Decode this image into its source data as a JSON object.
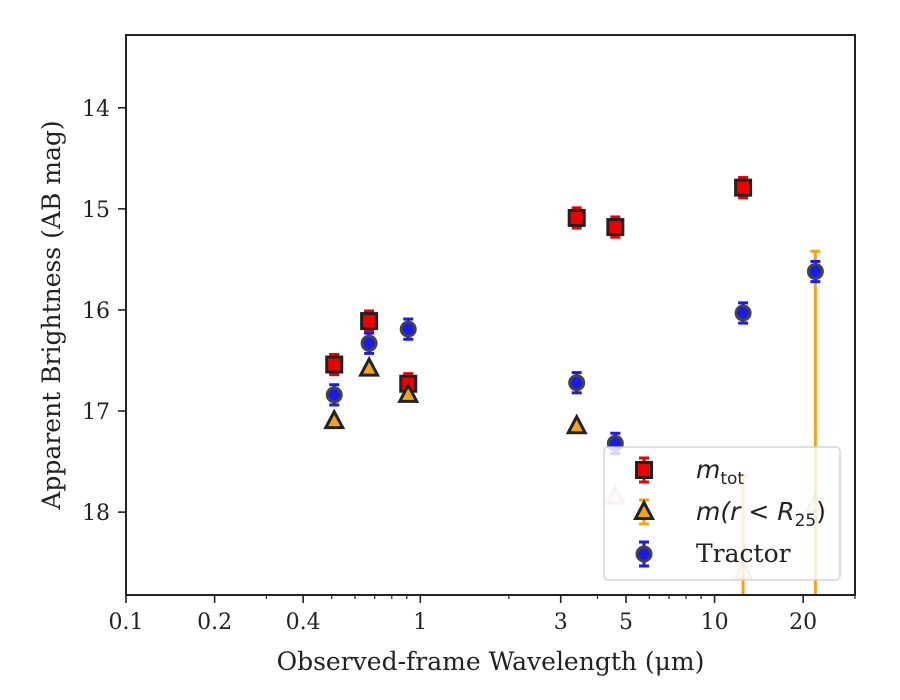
{
  "chart_data": {
    "type": "scatter",
    "xlabel": "Observed-frame Wavelength (μm)",
    "ylabel": "Apparent Brightness (AB mag)",
    "x_scale": "log",
    "xlim": [
      0.1,
      30
    ],
    "ylim": [
      18.82,
      13.28
    ],
    "y_inverted": true,
    "grid": false,
    "legend_position": "lower-right",
    "x_ticks": [
      {
        "value": 0.1,
        "label": "0.1"
      },
      {
        "value": 0.2,
        "label": "0.2"
      },
      {
        "value": 0.4,
        "label": "0.4"
      },
      {
        "value": 1,
        "label": "1"
      },
      {
        "value": 3,
        "label": "3"
      },
      {
        "value": 5,
        "label": "5"
      },
      {
        "value": 10,
        "label": "10"
      },
      {
        "value": 20,
        "label": "20"
      }
    ],
    "x_minor_ticks": [
      0.3,
      0.5,
      0.6,
      0.7,
      0.8,
      0.9,
      2,
      4,
      6,
      7,
      8,
      9,
      30
    ],
    "y_ticks": [
      {
        "value": 14,
        "label": "14"
      },
      {
        "value": 15,
        "label": "15"
      },
      {
        "value": 16,
        "label": "16"
      },
      {
        "value": 17,
        "label": "17"
      },
      {
        "value": 18,
        "label": "18"
      }
    ],
    "series": [
      {
        "name": "m_tot",
        "legend_symbol": "m",
        "legend_sub": "tot",
        "marker": "square",
        "color": "#ee0000",
        "edge": "#222222",
        "errcolor": "#ee0000",
        "points": [
          {
            "x": 0.51,
            "y": 16.54,
            "err": 0.1
          },
          {
            "x": 0.67,
            "y": 16.11,
            "err": 0.1
          },
          {
            "x": 0.91,
            "y": 16.73,
            "err": 0.1
          },
          {
            "x": 3.4,
            "y": 15.09,
            "err": 0.1
          },
          {
            "x": 4.6,
            "y": 15.18,
            "err": 0.1
          },
          {
            "x": 12.5,
            "y": 14.79,
            "err": 0.1
          }
        ]
      },
      {
        "name": "m(r<R25)",
        "legend_symbol": "m(r < R",
        "legend_sub": "25",
        "legend_close": ")",
        "marker": "triangle",
        "color": "#f5a315",
        "edge": "#222222",
        "errcolor": "#f5a315",
        "points": [
          {
            "x": 0.51,
            "y": 17.1
          },
          {
            "x": 0.67,
            "y": 16.58
          },
          {
            "x": 0.91,
            "y": 16.84
          },
          {
            "x": 3.4,
            "y": 17.15
          },
          {
            "x": 4.6,
            "y": 17.85,
            "faded": true
          },
          {
            "x": 12.5,
            "y": 18.59,
            "faded": true,
            "err_up": 0.95,
            "err_down": 0.6
          },
          {
            "x": 22.0,
            "y": 17.92,
            "faded": true,
            "err_up": 2.5,
            "err_down": 1.2
          }
        ]
      },
      {
        "name": "Tractor",
        "legend_symbol": "Tractor",
        "marker": "circle",
        "color": "#1a1aee",
        "edge": "#444444",
        "errcolor": "#1a1aee",
        "points": [
          {
            "x": 0.51,
            "y": 16.84,
            "err": 0.1
          },
          {
            "x": 0.67,
            "y": 16.33,
            "err": 0.1
          },
          {
            "x": 0.91,
            "y": 16.19,
            "err": 0.1
          },
          {
            "x": 3.4,
            "y": 16.72,
            "err": 0.1
          },
          {
            "x": 4.6,
            "y": 17.32,
            "err": 0.1
          },
          {
            "x": 12.5,
            "y": 16.03,
            "err": 0.1
          },
          {
            "x": 22.0,
            "y": 15.62,
            "err": 0.1
          }
        ]
      }
    ]
  }
}
